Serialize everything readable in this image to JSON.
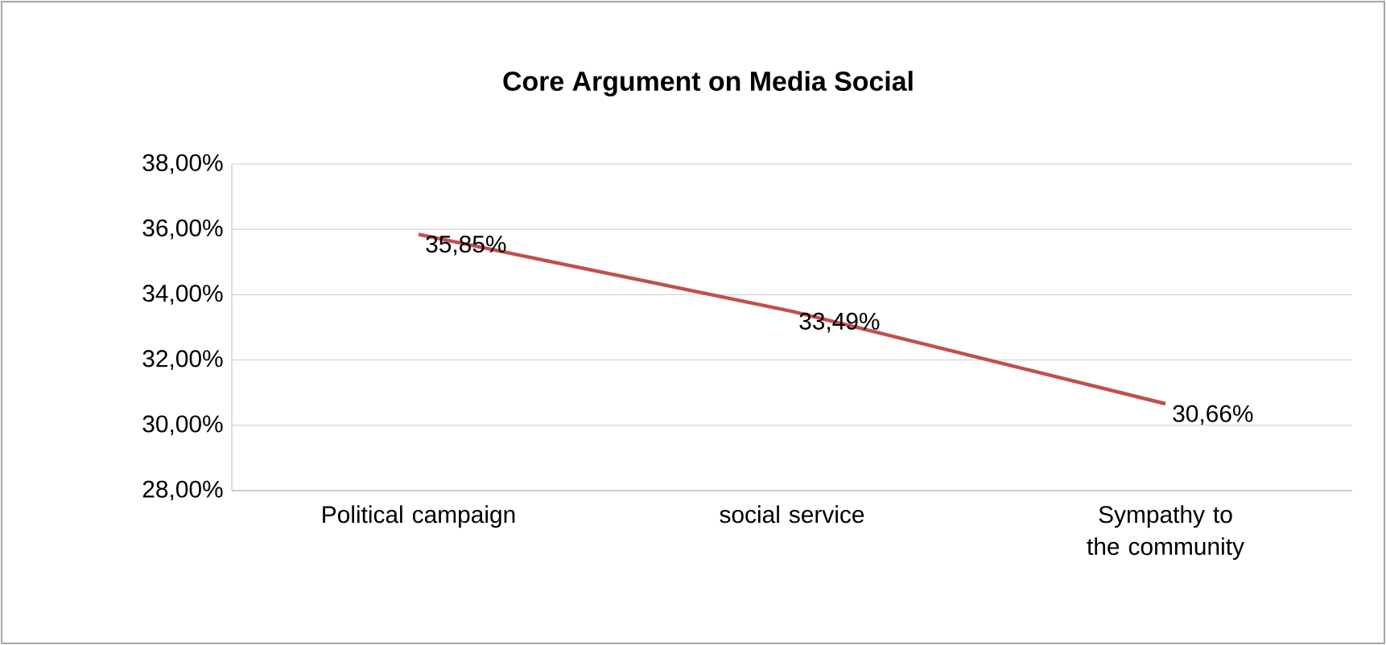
{
  "chart_data": {
    "type": "line",
    "title": "Core Argument on Media Social",
    "categories": [
      "Political campaign",
      "social service",
      "Sympathy to the community"
    ],
    "values": [
      35.85,
      33.49,
      30.66
    ],
    "value_labels": [
      "35,85%",
      "33,49%",
      "30,66%"
    ],
    "color": "#c0504d",
    "ylim": [
      28,
      38
    ],
    "yticks": [
      {
        "value": 28,
        "label": "28,00%"
      },
      {
        "value": 30,
        "label": "30,00%"
      },
      {
        "value": 32,
        "label": "32,00%"
      },
      {
        "value": 34,
        "label": "34,00%"
      },
      {
        "value": 36,
        "label": "36,00%"
      },
      {
        "value": 38,
        "label": "38,00%"
      }
    ],
    "grid": "y",
    "marker": "none",
    "line_style": "solid"
  }
}
